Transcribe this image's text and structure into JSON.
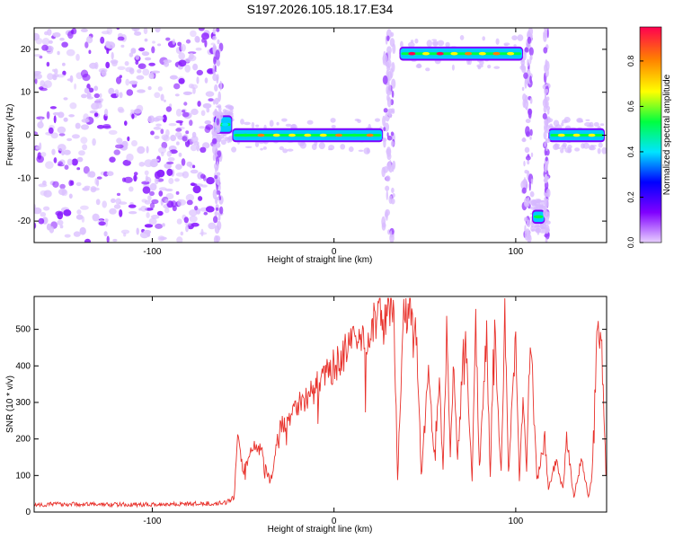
{
  "title": "S197.2026.105.18.17.E34",
  "chart_data": [
    {
      "type": "heatmap",
      "title": "S197.2026.105.18.17.E34",
      "xlabel": "Height of straight line (km)",
      "ylabel": "Frequency (Hz)",
      "xlim": [
        -165,
        150
      ],
      "ylim": [
        -25,
        25
      ],
      "x_ticks": [
        -100,
        0,
        100
      ],
      "y_ticks": [
        -20,
        -10,
        0,
        10,
        20
      ],
      "colorbar": {
        "label": "Normalized spectral amplitude",
        "ticks": [
          0.0,
          0.2,
          0.4,
          0.6,
          0.8
        ],
        "range": [
          0,
          0.95
        ],
        "colors": [
          "#e8d0ff",
          "#8000ff",
          "#0000ff",
          "#00e5ff",
          "#00ff40",
          "#ffff00",
          "#ff8000",
          "#ff0050"
        ]
      },
      "regions": [
        {
          "name": "noise",
          "x": [
            -165,
            -66
          ],
          "freq": [
            -25,
            25
          ]
        },
        {
          "name": "tone",
          "x": [
            -66,
            -56
          ],
          "freq": [
            1,
            4
          ],
          "amplitude": 0.45
        },
        {
          "name": "tone",
          "x": [
            -56,
            27
          ],
          "freq": [
            -1,
            1
          ],
          "amplitude": 0.7
        },
        {
          "name": "tone",
          "x": [
            36,
            104
          ],
          "freq": [
            18,
            20
          ],
          "amplitude": 0.75
        },
        {
          "name": "tone",
          "x": [
            109,
            116
          ],
          "freq": [
            -20,
            -18
          ],
          "amplitude": 0.5
        },
        {
          "name": "tone",
          "x": [
            118,
            149
          ],
          "freq": [
            -1,
            1
          ],
          "amplitude": 0.5
        }
      ]
    },
    {
      "type": "line",
      "xlabel": "Height of straight line (km)",
      "ylabel": "SNR (10 * v/v)",
      "xlim": [
        -165,
        150
      ],
      "ylim": [
        0,
        590
      ],
      "x_ticks": [
        -100,
        0,
        100
      ],
      "y_ticks": [
        0,
        100,
        200,
        300,
        400,
        500
      ],
      "color": "#e8302a",
      "series": [
        {
          "x": [
            -165,
            -150,
            -130,
            -110,
            -90,
            -70,
            -60,
            -55,
            -53,
            -50,
            -45,
            -40,
            -35,
            -30,
            -25,
            -20,
            -15,
            -10,
            -5,
            0,
            5,
            10,
            15,
            20,
            25,
            30,
            33,
            35,
            38,
            40,
            42,
            44,
            46,
            48,
            52,
            55,
            58,
            60,
            62,
            64,
            66,
            68,
            72,
            76,
            78,
            80,
            84,
            86,
            88,
            92,
            94,
            96,
            100,
            102,
            104,
            106,
            108,
            112,
            116,
            118,
            122,
            126,
            128,
            132,
            136,
            140,
            142,
            145,
            147,
            150
          ],
          "y": [
            20,
            22,
            21,
            20,
            22,
            23,
            25,
            40,
            200,
            110,
            180,
            170,
            80,
            230,
            260,
            300,
            310,
            340,
            370,
            400,
            430,
            460,
            470,
            500,
            540,
            550,
            560,
            90,
            520,
            540,
            560,
            540,
            400,
            100,
            380,
            150,
            350,
            110,
            480,
            150,
            420,
            140,
            500,
            90,
            520,
            120,
            500,
            90,
            520,
            110,
            540,
            100,
            500,
            90,
            300,
            120,
            480,
            90,
            200,
            60,
            140,
            60,
            200,
            40,
            150,
            40,
            100,
            500,
            480,
            100
          ]
        }
      ]
    }
  ]
}
